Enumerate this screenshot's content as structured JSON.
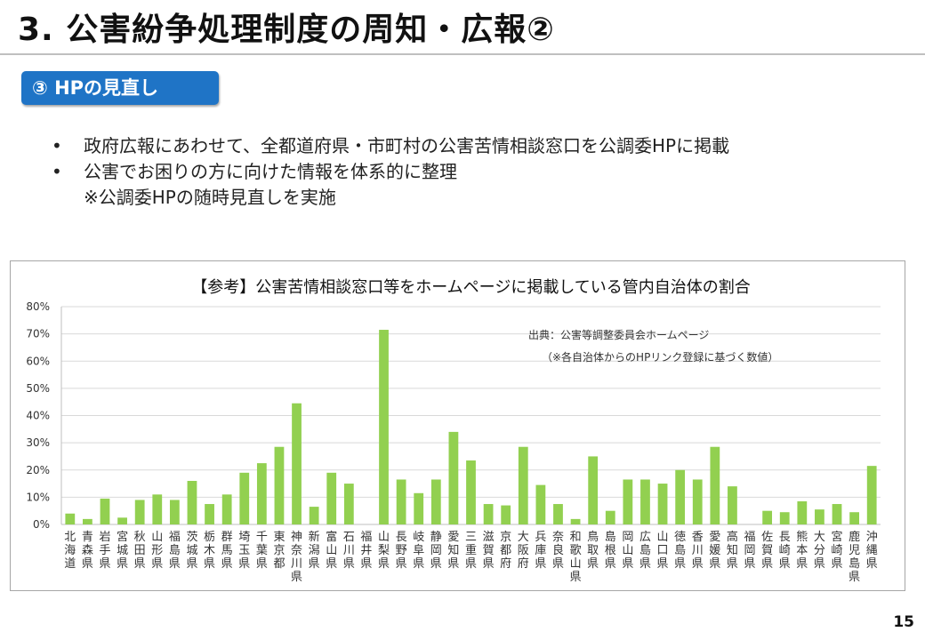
{
  "slide": {
    "title": "3. 公害紛争処理制度の周知・広報②",
    "badge": "③ HPの見直し",
    "bullets": [
      "政府広報にあわせて、全都道府県・市町村の公害苦情相談窓口を公調委HPに掲載",
      "公害でお困りの方に向けた情報を体系的に整理"
    ],
    "bullet_marker": "•",
    "note": "※公調委HPの随時見直しを実施",
    "page_number": "15"
  },
  "chart_data": {
    "type": "bar",
    "title": "【参考】公害苦情相談窓口等をホームページに掲載している管内自治体の割合",
    "source_lines": [
      "出典：公害等調整委員会ホームページ",
      "（※各自治体からのHPリンク登録に基づく数値）"
    ],
    "xlabel": "",
    "ylabel": "",
    "ylim": [
      0,
      0.8
    ],
    "yticks": [
      0,
      0.1,
      0.2,
      0.3,
      0.4,
      0.5,
      0.6,
      0.7,
      0.8
    ],
    "ytick_labels": [
      "0%",
      "10%",
      "20%",
      "30%",
      "40%",
      "50%",
      "60%",
      "70%",
      "80%"
    ],
    "grid": true,
    "bar_color": "#92d050",
    "categories": [
      "北海道",
      "青森県",
      "岩手県",
      "宮城県",
      "秋田県",
      "山形県",
      "福島県",
      "茨城県",
      "栃木県",
      "群馬県",
      "埼玉県",
      "千葉県",
      "東京都",
      "神奈川県",
      "新潟県",
      "富山県",
      "石川県",
      "福井県",
      "山梨県",
      "長野県",
      "岐阜県",
      "静岡県",
      "愛知県",
      "三重県",
      "滋賀県",
      "京都府",
      "大阪府",
      "兵庫県",
      "奈良県",
      "和歌山県",
      "鳥取県",
      "島根県",
      "岡山県",
      "広島県",
      "山口県",
      "徳島県",
      "香川県",
      "愛媛県",
      "高知県",
      "福岡県",
      "佐賀県",
      "長崎県",
      "熊本県",
      "大分県",
      "宮崎県",
      "鹿児島県",
      "沖縄県"
    ],
    "values": [
      0.04,
      0.02,
      0.095,
      0.025,
      0.09,
      0.11,
      0.09,
      0.16,
      0.075,
      0.11,
      0.19,
      0.225,
      0.285,
      0.445,
      0.065,
      0.19,
      0.15,
      0.0,
      0.715,
      0.165,
      0.115,
      0.165,
      0.34,
      0.235,
      0.075,
      0.07,
      0.285,
      0.145,
      0.075,
      0.02,
      0.25,
      0.05,
      0.165,
      0.165,
      0.15,
      0.2,
      0.165,
      0.285,
      0.14,
      0.0,
      0.05,
      0.045,
      0.085,
      0.055,
      0.075,
      0.045,
      0.215
    ]
  }
}
